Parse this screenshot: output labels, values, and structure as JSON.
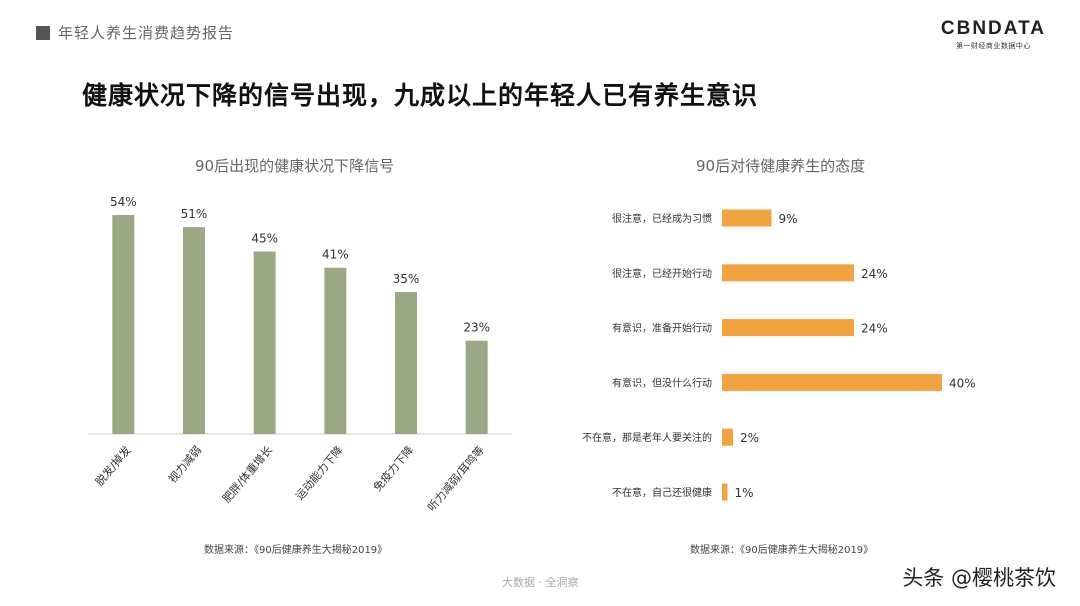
{
  "header": {
    "section": "年轻人养生消费趋势报告"
  },
  "logo": {
    "main": "CBNDATA",
    "sub": "第一财经商业数据中心"
  },
  "page_title": "健康状况下降的信号出现，九成以上的年轻人已有养生意识",
  "colors": {
    "left_bar": "#9aa984",
    "right_bar": "#f0a33f"
  },
  "chart_data": [
    {
      "type": "bar",
      "title": "90后出现的健康状况下降信号",
      "categories": [
        "脱发/掉发",
        "视力减弱",
        "肥胖/体重增长",
        "运动能力下降",
        "免疫力下降",
        "听力减弱/耳鸣等"
      ],
      "values": [
        54,
        51,
        45,
        41,
        35,
        23
      ],
      "value_labels": [
        "54%",
        "51%",
        "45%",
        "41%",
        "35%",
        "23%"
      ],
      "unit": "%",
      "ylim": [
        0,
        60
      ],
      "grid": false,
      "source": "数据来源：《90后健康养生大揭秘2019》"
    },
    {
      "type": "bar",
      "orientation": "horizontal",
      "title": "90后对待健康养生的态度",
      "categories": [
        "很注意，已经成为习惯",
        "很注意，已经开始行动",
        "有意识，准备开始行动",
        "有意识，但没什么行动",
        "不在意，那是老年人要关注的",
        "不在意，自己还很健康"
      ],
      "values": [
        9,
        24,
        24,
        40,
        2,
        1
      ],
      "value_labels": [
        "9%",
        "24%",
        "24%",
        "40%",
        "2%",
        "1%"
      ],
      "unit": "%",
      "xlim": [
        0,
        40
      ],
      "grid": false,
      "source": "数据来源：《90后健康养生大揭秘2019》"
    }
  ],
  "footer": {
    "mark": "大数据 · 全洞察"
  },
  "watermark": "头条 @樱桃茶饮"
}
